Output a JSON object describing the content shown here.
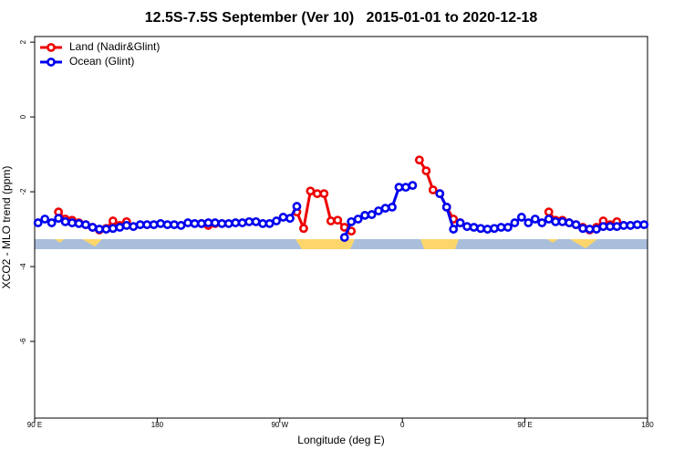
{
  "chart_data": {
    "type": "line",
    "title": "12.5S-7.5S September (Ver 10)   2015-01-01 to 2020-12-18",
    "xlabel": "Longitude (deg E)",
    "ylabel": "XCO2 - MLO trend (ppm)",
    "xlim": [
      90,
      540
    ],
    "ylim": [
      -8.05,
      2.15
    ],
    "xticks": [
      {
        "value": 90,
        "label": "90 E"
      },
      180,
      {
        "value": 270,
        "label": "90 W"
      },
      {
        "value": 360,
        "label": "0"
      },
      {
        "value": 450,
        "label": "90 E"
      },
      {
        "value": 540,
        "label": "180"
      }
    ],
    "yticks": [
      2,
      0,
      -2,
      -4,
      -6
    ],
    "legend": "topleft",
    "x": [
      92.5,
      97.5,
      102.5,
      107.5,
      112.5,
      117.5,
      122.5,
      127.5,
      132.5,
      137.5,
      142.5,
      147.5,
      152.5,
      157.5,
      162.5,
      167.5,
      172.5,
      177.5,
      182.5,
      187.5,
      192.5,
      197.5,
      202.5,
      207.5,
      212.5,
      217.5,
      222.5,
      227.5,
      232.5,
      237.5,
      242.5,
      247.5,
      252.5,
      257.5,
      262.5,
      267.5,
      272.5,
      277.5,
      282.5,
      287.5,
      292.5,
      297.5,
      302.5,
      307.5,
      312.5,
      317.5,
      322.5,
      327.5,
      332.5,
      337.5,
      342.5,
      347.5,
      352.5,
      357.5,
      362.5,
      367.5,
      372.5,
      377.5,
      382.5,
      387.5,
      392.5,
      397.5,
      402.5,
      407.5,
      412.5,
      417.5,
      422.5,
      427.5,
      432.5,
      437.5,
      442.5,
      447.5,
      452.5,
      457.5,
      462.5,
      467.5,
      472.5,
      477.5,
      482.5,
      487.5,
      492.5,
      497.5,
      502.5,
      507.5,
      512.5,
      517.5,
      522.5,
      527.5,
      532.5,
      537.5
    ],
    "series": [
      {
        "name": "Land (Nadir&Glint)",
        "color": "#ee0000",
        "values": [
          null,
          null,
          null,
          -2.54,
          -2.73,
          -2.76,
          -2.83,
          -2.88,
          -2.95,
          -3.02,
          -2.98,
          -2.78,
          -2.9,
          -2.8,
          null,
          null,
          null,
          null,
          null,
          null,
          null,
          null,
          null,
          null,
          -2.85,
          -2.9,
          -2.85,
          null,
          null,
          null,
          null,
          null,
          null,
          null,
          null,
          null,
          null,
          null,
          -2.54,
          -2.98,
          -1.98,
          -2.05,
          -2.05,
          -2.78,
          -2.76,
          -2.95,
          -3.05,
          null,
          null,
          null,
          null,
          null,
          null,
          null,
          null,
          null,
          -1.15,
          -1.44,
          -1.95,
          -2.05,
          -2.41,
          -2.73,
          -2.83,
          null,
          null,
          null,
          null,
          null,
          null,
          null,
          null,
          null,
          null,
          null,
          null,
          -2.54,
          -2.76,
          -2.76,
          -2.83,
          -2.88,
          -2.95,
          -3.02,
          -2.95,
          -2.78,
          -2.88,
          -2.8,
          null,
          null,
          null,
          null
        ]
      },
      {
        "name": "Ocean (Glint)",
        "color": "#0000ee",
        "values": [
          -2.83,
          -2.73,
          -2.83,
          -2.71,
          -2.8,
          -2.83,
          -2.85,
          -2.88,
          -2.95,
          -3.0,
          -3.0,
          -2.98,
          -2.95,
          -2.9,
          -2.93,
          -2.88,
          -2.88,
          -2.88,
          -2.85,
          -2.88,
          -2.88,
          -2.9,
          -2.83,
          -2.85,
          -2.85,
          -2.83,
          -2.83,
          -2.85,
          -2.85,
          -2.83,
          -2.83,
          -2.8,
          -2.8,
          -2.85,
          -2.85,
          -2.78,
          -2.68,
          -2.71,
          -2.39,
          null,
          null,
          null,
          null,
          null,
          null,
          -3.22,
          -2.8,
          -2.73,
          -2.63,
          -2.61,
          -2.51,
          -2.44,
          -2.41,
          -1.88,
          -1.88,
          -1.83,
          null,
          null,
          null,
          -2.05,
          -2.41,
          -3.0,
          -2.83,
          -2.93,
          -2.95,
          -2.98,
          -3.0,
          -2.98,
          -2.95,
          -2.95,
          -2.83,
          -2.68,
          -2.83,
          -2.73,
          -2.83,
          -2.73,
          -2.8,
          -2.8,
          -2.83,
          -2.88,
          -2.98,
          -3.0,
          -3.0,
          -2.93,
          -2.93,
          -2.93,
          -2.9,
          -2.9,
          -2.88,
          -2.88
        ]
      }
    ]
  }
}
